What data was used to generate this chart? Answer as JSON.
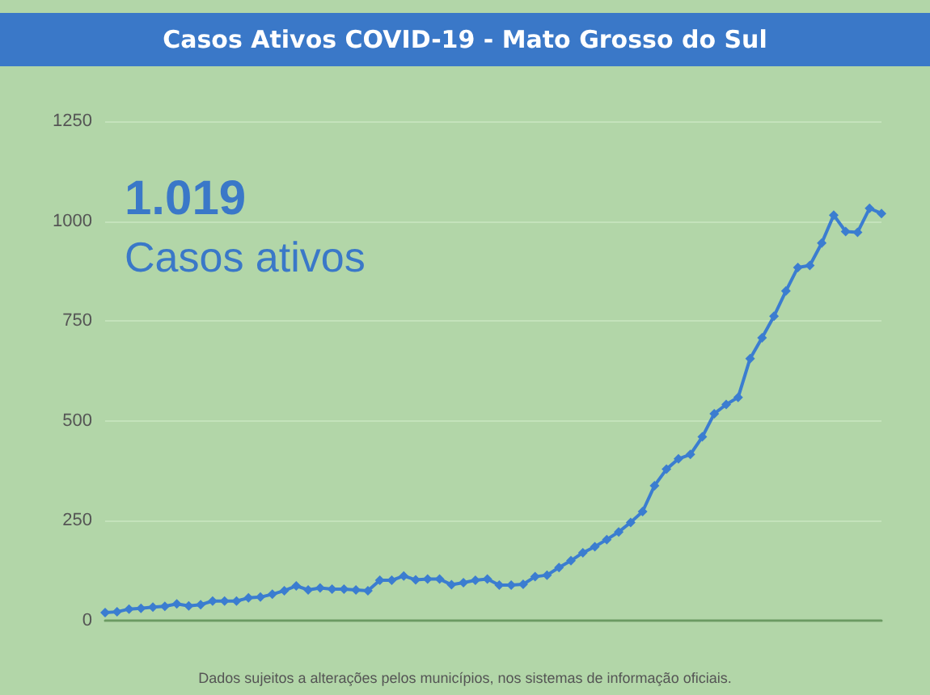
{
  "chart_data": {
    "type": "line",
    "title": "Casos Ativos COVID-19 - Mato Grosso do Sul",
    "categories": [
      null,
      null,
      null,
      null,
      null,
      null,
      null,
      null,
      null,
      null,
      null,
      null,
      null,
      null,
      null,
      null,
      null,
      null,
      null,
      null,
      null,
      null,
      null,
      null,
      null,
      null,
      null,
      null,
      null,
      null,
      null,
      null,
      null,
      null,
      null,
      null,
      null,
      null,
      null,
      null,
      null,
      null,
      null,
      null,
      null,
      null,
      null,
      null,
      null,
      null,
      null,
      null,
      null,
      null,
      null,
      null,
      null,
      null,
      null,
      null,
      null,
      null,
      null,
      null,
      null,
      null
    ],
    "series": [
      {
        "color": "#3b7dd0",
        "values": [
          20,
          22,
          29,
          31,
          34,
          36,
          42,
          37,
          40,
          49,
          49,
          49,
          57,
          59,
          66,
          75,
          87,
          77,
          82,
          79,
          79,
          77,
          75,
          101,
          101,
          112,
          102,
          104,
          104,
          90,
          95,
          101,
          104,
          89,
          89,
          91,
          110,
          114,
          133,
          150,
          170,
          185,
          203,
          222,
          246,
          273,
          338,
          379,
          405,
          416,
          460,
          518,
          541,
          559,
          656,
          708,
          762,
          825,
          884,
          889,
          945,
          1015,
          974,
          972,
          1032,
          1019
        ]
      }
    ],
    "ylim": [
      0,
      1250
    ],
    "yticks": [
      0,
      250,
      500,
      750,
      1000,
      1250
    ],
    "grid": "y",
    "marker": "diamond",
    "line_style": "solid",
    "annotations": [
      "1.019",
      "Casos ativos",
      "Dados sujeitos a alterações pelos municípios, nos sistemas de informação oficiais."
    ]
  }
}
